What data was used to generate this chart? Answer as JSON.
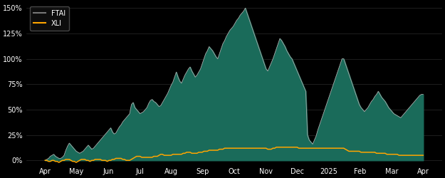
{
  "background_color": "#000000",
  "plot_bg_color": "#000000",
  "ftai_fill_color": "#1a6b5a",
  "ftai_line_color": "#aaaaaa",
  "xli_color": "#ffa500",
  "legend_ftai_color": "#777777",
  "ylim": [
    -0.04,
    1.55
  ],
  "yticks": [
    0.0,
    0.25,
    0.5,
    0.75,
    1.0,
    1.25,
    1.5
  ],
  "ytick_labels": [
    "0%",
    "25%",
    "50%",
    "75%",
    "100%",
    "125%",
    "150%"
  ],
  "xtick_labels": [
    "Apr",
    "May",
    "Jun",
    "Jul",
    "Aug",
    "Sep",
    "Oct",
    "Nov",
    "Dec",
    "2025",
    "Feb",
    "Mar",
    "Apr"
  ],
  "ftai_data": [
    0.0,
    0.01,
    0.02,
    0.04,
    0.05,
    0.06,
    0.04,
    0.03,
    0.02,
    0.02,
    0.03,
    0.05,
    0.1,
    0.14,
    0.17,
    0.15,
    0.13,
    0.11,
    0.09,
    0.08,
    0.07,
    0.08,
    0.09,
    0.11,
    0.13,
    0.15,
    0.13,
    0.11,
    0.12,
    0.14,
    0.16,
    0.18,
    0.2,
    0.22,
    0.24,
    0.26,
    0.28,
    0.3,
    0.32,
    0.28,
    0.26,
    0.27,
    0.3,
    0.33,
    0.35,
    0.38,
    0.4,
    0.42,
    0.44,
    0.46,
    0.55,
    0.57,
    0.52,
    0.5,
    0.48,
    0.46,
    0.47,
    0.48,
    0.5,
    0.52,
    0.56,
    0.59,
    0.6,
    0.58,
    0.57,
    0.55,
    0.53,
    0.54,
    0.57,
    0.6,
    0.63,
    0.66,
    0.7,
    0.74,
    0.77,
    0.82,
    0.87,
    0.82,
    0.78,
    0.76,
    0.8,
    0.84,
    0.87,
    0.9,
    0.92,
    0.88,
    0.85,
    0.82,
    0.84,
    0.87,
    0.9,
    0.95,
    1.0,
    1.05,
    1.08,
    1.12,
    1.1,
    1.08,
    1.05,
    1.02,
    1.0,
    1.05,
    1.1,
    1.15,
    1.18,
    1.22,
    1.25,
    1.28,
    1.3,
    1.32,
    1.35,
    1.38,
    1.4,
    1.43,
    1.45,
    1.47,
    1.5,
    1.45,
    1.4,
    1.35,
    1.3,
    1.25,
    1.2,
    1.15,
    1.1,
    1.05,
    1.0,
    0.95,
    0.9,
    0.88,
    0.92,
    0.96,
    1.0,
    1.05,
    1.1,
    1.15,
    1.2,
    1.18,
    1.15,
    1.12,
    1.08,
    1.05,
    1.02,
    1.0,
    0.96,
    0.92,
    0.88,
    0.84,
    0.8,
    0.76,
    0.72,
    0.68,
    0.25,
    0.2,
    0.18,
    0.16,
    0.2,
    0.24,
    0.3,
    0.35,
    0.4,
    0.45,
    0.5,
    0.55,
    0.6,
    0.65,
    0.7,
    0.75,
    0.8,
    0.85,
    0.9,
    0.95,
    1.0,
    1.0,
    0.95,
    0.9,
    0.85,
    0.8,
    0.75,
    0.7,
    0.65,
    0.6,
    0.55,
    0.52,
    0.5,
    0.48,
    0.5,
    0.52,
    0.55,
    0.58,
    0.6,
    0.63,
    0.65,
    0.68,
    0.65,
    0.62,
    0.6,
    0.58,
    0.55,
    0.52,
    0.5,
    0.48,
    0.46,
    0.45,
    0.44,
    0.43,
    0.42,
    0.44,
    0.46,
    0.48,
    0.5,
    0.52,
    0.54,
    0.56,
    0.58,
    0.6,
    0.62,
    0.64,
    0.65,
    0.65
  ],
  "xli_data": [
    0.0,
    0.0,
    -0.01,
    -0.01,
    0.0,
    0.0,
    -0.01,
    -0.01,
    -0.02,
    -0.01,
    0.0,
    0.0,
    0.01,
    0.01,
    0.01,
    0.0,
    -0.01,
    -0.01,
    -0.02,
    -0.01,
    0.0,
    0.01,
    0.01,
    0.01,
    0.0,
    0.0,
    -0.01,
    0.0,
    0.0,
    0.01,
    0.01,
    0.01,
    0.01,
    0.0,
    0.0,
    0.0,
    -0.01,
    0.0,
    0.0,
    0.01,
    0.01,
    0.02,
    0.02,
    0.02,
    0.02,
    0.01,
    0.01,
    0.0,
    0.0,
    0.0,
    0.01,
    0.02,
    0.03,
    0.04,
    0.04,
    0.04,
    0.03,
    0.03,
    0.03,
    0.03,
    0.03,
    0.03,
    0.03,
    0.04,
    0.04,
    0.04,
    0.05,
    0.06,
    0.06,
    0.05,
    0.05,
    0.05,
    0.05,
    0.05,
    0.06,
    0.06,
    0.06,
    0.06,
    0.06,
    0.06,
    0.07,
    0.07,
    0.08,
    0.08,
    0.08,
    0.07,
    0.07,
    0.07,
    0.07,
    0.08,
    0.08,
    0.08,
    0.09,
    0.09,
    0.09,
    0.1,
    0.1,
    0.1,
    0.1,
    0.1,
    0.1,
    0.11,
    0.11,
    0.11,
    0.12,
    0.12,
    0.12,
    0.12,
    0.12,
    0.12,
    0.12,
    0.12,
    0.12,
    0.12,
    0.12,
    0.12,
    0.12,
    0.12,
    0.12,
    0.12,
    0.12,
    0.12,
    0.12,
    0.12,
    0.12,
    0.12,
    0.12,
    0.12,
    0.12,
    0.11,
    0.11,
    0.11,
    0.12,
    0.12,
    0.13,
    0.13,
    0.13,
    0.13,
    0.13,
    0.13,
    0.13,
    0.13,
    0.13,
    0.13,
    0.13,
    0.13,
    0.13,
    0.12,
    0.12,
    0.12,
    0.12,
    0.12,
    0.12,
    0.12,
    0.12,
    0.12,
    0.12,
    0.12,
    0.12,
    0.12,
    0.12,
    0.12,
    0.12,
    0.12,
    0.12,
    0.12,
    0.12,
    0.12,
    0.12,
    0.12,
    0.12,
    0.12,
    0.12,
    0.12,
    0.11,
    0.1,
    0.09,
    0.09,
    0.09,
    0.09,
    0.09,
    0.09,
    0.09,
    0.08,
    0.08,
    0.08,
    0.08,
    0.08,
    0.08,
    0.08,
    0.08,
    0.08,
    0.07,
    0.07,
    0.07,
    0.07,
    0.07,
    0.07,
    0.06,
    0.06,
    0.06,
    0.06,
    0.06,
    0.06,
    0.06,
    0.05,
    0.05,
    0.05,
    0.05,
    0.05,
    0.05,
    0.05,
    0.05,
    0.05,
    0.05,
    0.05,
    0.05,
    0.05,
    0.05,
    0.05
  ]
}
